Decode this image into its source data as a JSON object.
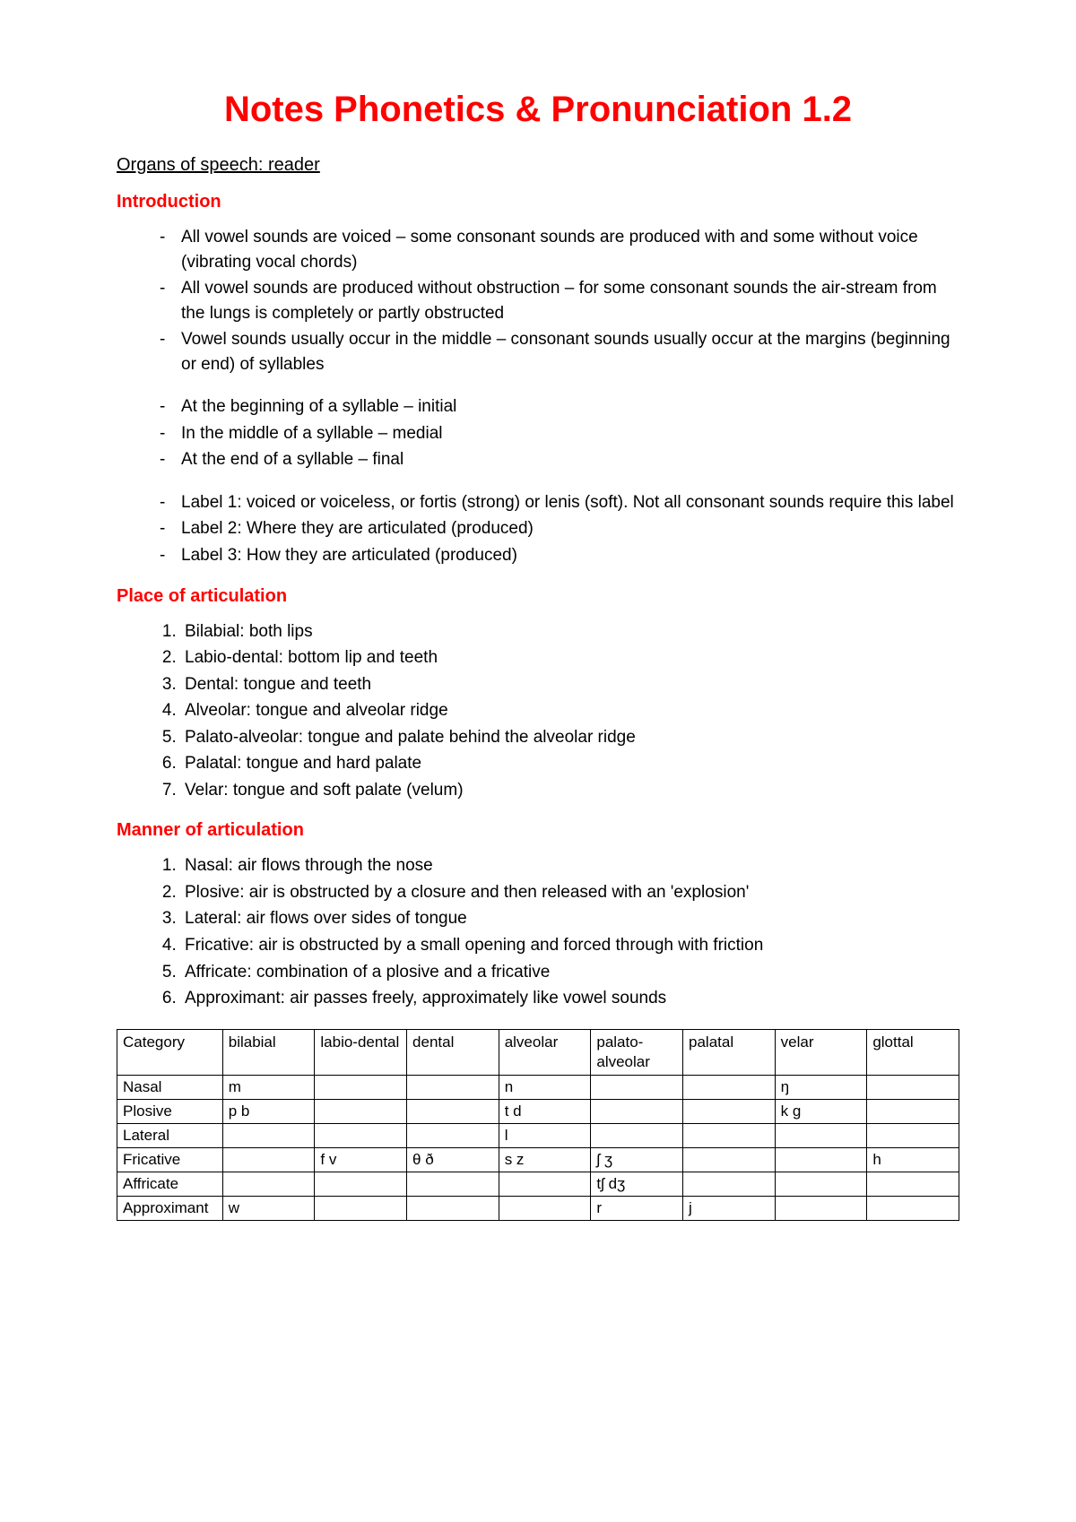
{
  "title": "Notes Phonetics & Pronunciation 1.2",
  "subtitle": "Organs of speech: reader",
  "sections": {
    "intro": {
      "heading": "Introduction",
      "group1": [
        "All vowel sounds are voiced – some consonant sounds are produced with and some without voice (vibrating vocal chords)",
        "All vowel sounds are produced without obstruction – for some consonant sounds the air-stream from the lungs is completely or partly obstructed",
        "Vowel sounds usually occur in the middle – consonant sounds usually occur at the margins (beginning or end) of syllables"
      ],
      "group2": [
        "At the beginning of a syllable – initial",
        "In the middle of a syllable – medial",
        "At the end of a syllable – final"
      ],
      "group3": [
        "Label 1: voiced or voiceless, or fortis (strong) or lenis (soft). Not all consonant sounds require this label",
        "Label 2: Where they are articulated (produced)",
        "Label 3: How they are articulated (produced)"
      ]
    },
    "place": {
      "heading": "Place of articulation",
      "items": [
        "Bilabial: both lips",
        "Labio-dental: bottom lip and teeth",
        "Dental: tongue and teeth",
        "Alveolar: tongue and alveolar ridge",
        "Palato-alveolar: tongue and palate behind the alveolar ridge",
        "Palatal: tongue and hard palate",
        "Velar: tongue and soft palate (velum)"
      ]
    },
    "manner": {
      "heading": "Manner of articulation",
      "items": [
        "Nasal: air flows through the nose",
        "Plosive: air is obstructed by a closure and then released with an 'explosion'",
        "Lateral: air flows over sides of tongue",
        "Fricative: air is obstructed by a small opening and forced through with friction",
        "Affricate: combination of a plosive and a fricative",
        "Approximant: air passes freely, approximately like vowel sounds"
      ]
    }
  },
  "table": {
    "columns": [
      "Category",
      "bilabial",
      "labio-dental",
      "dental",
      "alveolar",
      "palato-alveolar",
      "palatal",
      "velar",
      "glottal"
    ],
    "rows": [
      [
        "Nasal",
        "m",
        "",
        "",
        "n",
        "",
        "",
        "ŋ",
        ""
      ],
      [
        "Plosive",
        "p   b",
        "",
        "",
        "t   d",
        "",
        "",
        "k   g",
        ""
      ],
      [
        "Lateral",
        "",
        "",
        "",
        "l",
        "",
        "",
        "",
        ""
      ],
      [
        "Fricative",
        "",
        "f   v",
        "θ   ð",
        "s   z",
        "ʃ   ʒ",
        "",
        "",
        "h"
      ],
      [
        "Affricate",
        "",
        "",
        "",
        "",
        "tʃ dʒ",
        "",
        "",
        ""
      ],
      [
        "Approximant",
        "w",
        "",
        "",
        "",
        "r",
        "j",
        "",
        ""
      ]
    ],
    "styling": {
      "border_color": "#000000",
      "header_has_linebreak_cols": [
        2,
        5
      ],
      "font_size": 17,
      "background": "#ffffff"
    }
  },
  "colors": {
    "title": "#ff0000",
    "section_heading": "#ff0000",
    "body_text": "#000000",
    "background": "#ffffff"
  },
  "typography": {
    "title_size": 40,
    "heading_size": 20,
    "body_size": 19,
    "table_size": 17,
    "font_family": "Arial"
  }
}
